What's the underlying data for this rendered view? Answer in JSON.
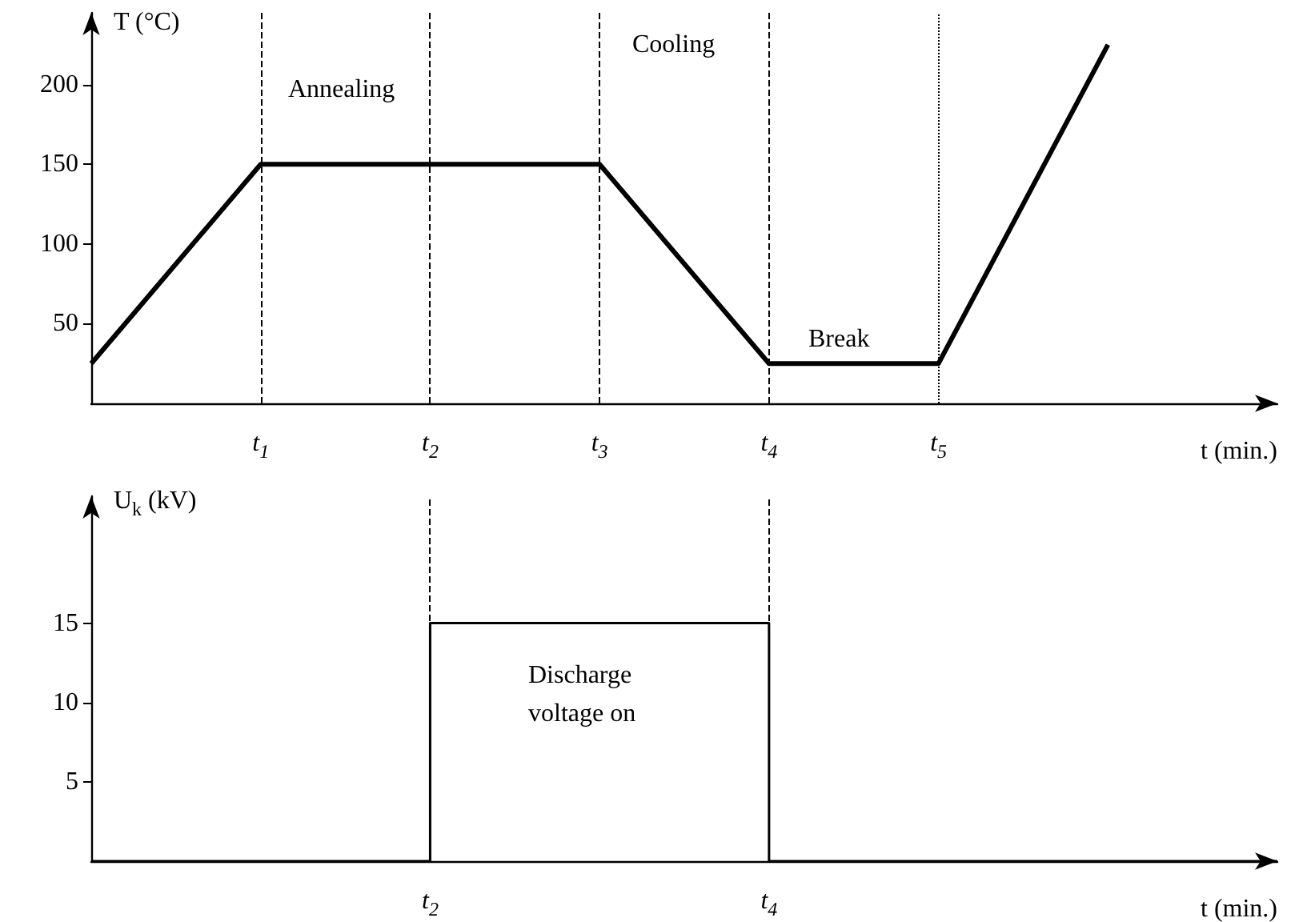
{
  "chart_data": [
    {
      "type": "line",
      "ylabel": "T (°C)",
      "xlabel": "t (min.)",
      "ylim": [
        0,
        245
      ],
      "yticks": [
        50,
        100,
        150,
        200
      ],
      "categories": [
        null,
        "t$_{1}$",
        "t$_{2}$",
        "t$_{3}$",
        "t$_{4}$",
        "t$_{5}$",
        null,
        null
      ],
      "series": [
        {
          "color": "#000000",
          "values": [
            25,
            150,
            150,
            150,
            25,
            25,
            225,
            null
          ]
        }
      ],
      "ref_lines": [
        {
          "axis": "x",
          "value": "t$_{1}$",
          "line_style": "dashed"
        },
        {
          "axis": "x",
          "value": "t$_{2}$",
          "line_style": "dashed"
        },
        {
          "axis": "x",
          "value": "t$_{3}$",
          "line_style": "dashed"
        },
        {
          "axis": "x",
          "value": "t$_{4}$",
          "line_style": "dashed"
        },
        {
          "axis": "x",
          "value": "t$_{5}$",
          "line_style": "dotted"
        }
      ],
      "annotations": [
        "Annealing",
        "Cooling",
        "Break"
      ]
    },
    {
      "type": "step",
      "ylabel": "U$_{k}$ (kV)",
      "xlabel": "t (min.)",
      "ylim": [
        0,
        23
      ],
      "yticks": [
        5,
        10,
        15
      ],
      "categories": [
        null,
        null,
        "t$_{2}$",
        null,
        "t$_{4}$",
        null,
        null,
        null
      ],
      "series": [
        {
          "color": "#000000",
          "values": [
            0,
            0,
            15,
            15,
            0,
            0,
            0,
            0
          ]
        }
      ],
      "ref_lines": [
        {
          "axis": "x",
          "value": "t$_{2}$",
          "line_style": "dashed"
        },
        {
          "axis": "x",
          "value": "t$_{4}$",
          "line_style": "dashed"
        }
      ],
      "annotations": [
        "Discharge voltage on"
      ]
    }
  ]
}
